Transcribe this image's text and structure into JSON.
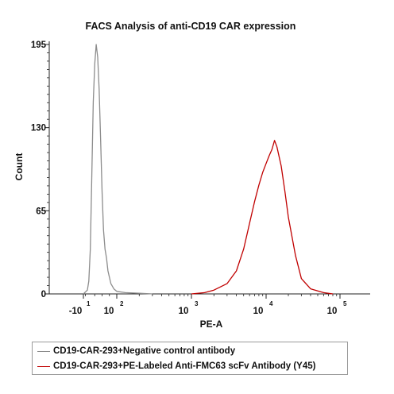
{
  "chart_data": {
    "type": "line",
    "title": "FACS Analysis of anti-CD19 CAR expression",
    "xlabel": "PE-A",
    "ylabel": "Count",
    "ylim": [
      0,
      195
    ],
    "yticks": [
      0,
      65,
      130,
      195
    ],
    "xscale": "biexponential (log-like above 10^1)",
    "xticks": [
      {
        "value": -10,
        "label": "-10",
        "exp": "1"
      },
      {
        "value": 100,
        "label": "10",
        "exp": "2"
      },
      {
        "value": 1000,
        "label": "10",
        "exp": "3"
      },
      {
        "value": 10000,
        "label": "10",
        "exp": "4"
      },
      {
        "value": 100000,
        "label": "10",
        "exp": "5"
      }
    ],
    "grid": false,
    "legend_position": "bottom",
    "series": [
      {
        "name": "CD19-CAR-293+Negative control antibody",
        "color": "#8c8c8c",
        "x": [
          -10,
          0,
          5,
          10,
          15,
          20,
          25,
          30,
          35,
          40,
          45,
          50,
          55,
          60,
          65,
          70,
          80,
          90,
          100,
          130,
          200,
          300
        ],
        "y": [
          0,
          3,
          10,
          35,
          90,
          150,
          180,
          195,
          185,
          160,
          120,
          80,
          50,
          35,
          28,
          18,
          8,
          4,
          2,
          1,
          0.5,
          0
        ]
      },
      {
        "name": "CD19-CAR-293+PE-Labeled Anti-FMC63 scFv Antibody (Y45)",
        "color": "#c00000",
        "x": [
          1000,
          1500,
          2000,
          3000,
          4000,
          5000,
          6000,
          7000,
          8000,
          9000,
          10000,
          11000,
          12000,
          13000,
          14000,
          16000,
          18000,
          20000,
          25000,
          30000,
          40000,
          60000,
          80000
        ],
        "y": [
          0,
          1,
          3,
          8,
          18,
          35,
          55,
          72,
          85,
          95,
          102,
          108,
          113,
          120,
          115,
          100,
          80,
          60,
          30,
          12,
          4,
          1,
          0
        ]
      }
    ]
  }
}
